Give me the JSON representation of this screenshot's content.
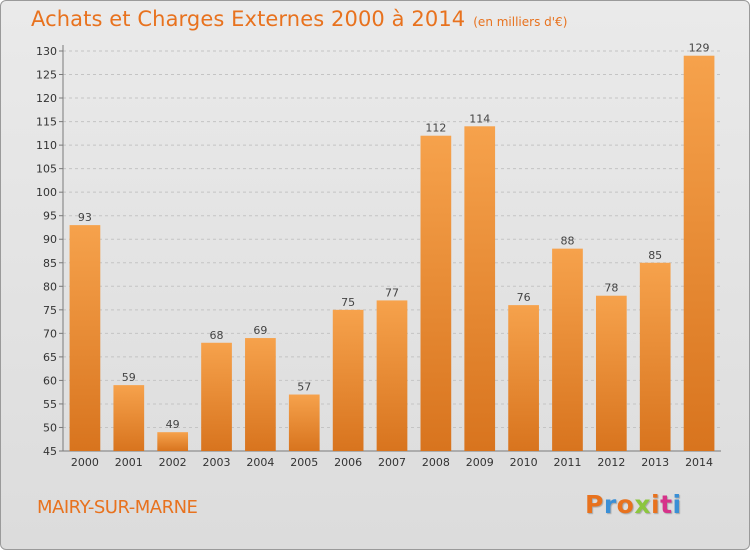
{
  "header": {
    "title": "Achats et Charges Externes 2000 à 2014",
    "unit": "(en milliers d'€)"
  },
  "footer": {
    "location": "MAIRY-SUR-MARNE",
    "brand": "Proxiti"
  },
  "colors": {
    "accent": "#e8721e",
    "bar_light": "#f6a24c",
    "bar_dark": "#d8741e",
    "brand_letters": [
      "#e8721e",
      "#3a8fd6",
      "#e8721e",
      "#8cc63f",
      "#e8721e",
      "#d6338a",
      "#3a8fd6"
    ]
  },
  "chart_data": {
    "type": "bar",
    "title": "Achats et Charges Externes 2000 à 2014",
    "unit": "(en milliers d'€)",
    "categories": [
      "2000",
      "2001",
      "2002",
      "2003",
      "2004",
      "2005",
      "2006",
      "2007",
      "2008",
      "2009",
      "2010",
      "2011",
      "2012",
      "2013",
      "2014"
    ],
    "values": [
      93,
      59,
      49,
      68,
      69,
      57,
      75,
      77,
      112,
      114,
      76,
      88,
      78,
      85,
      129
    ],
    "ylim": [
      45,
      130
    ],
    "yticks": [
      45,
      50,
      55,
      60,
      65,
      70,
      75,
      80,
      85,
      90,
      95,
      100,
      105,
      110,
      115,
      120,
      125,
      130
    ],
    "grid": true,
    "grid_axis": "y",
    "data_labels": true,
    "legend": "none"
  }
}
